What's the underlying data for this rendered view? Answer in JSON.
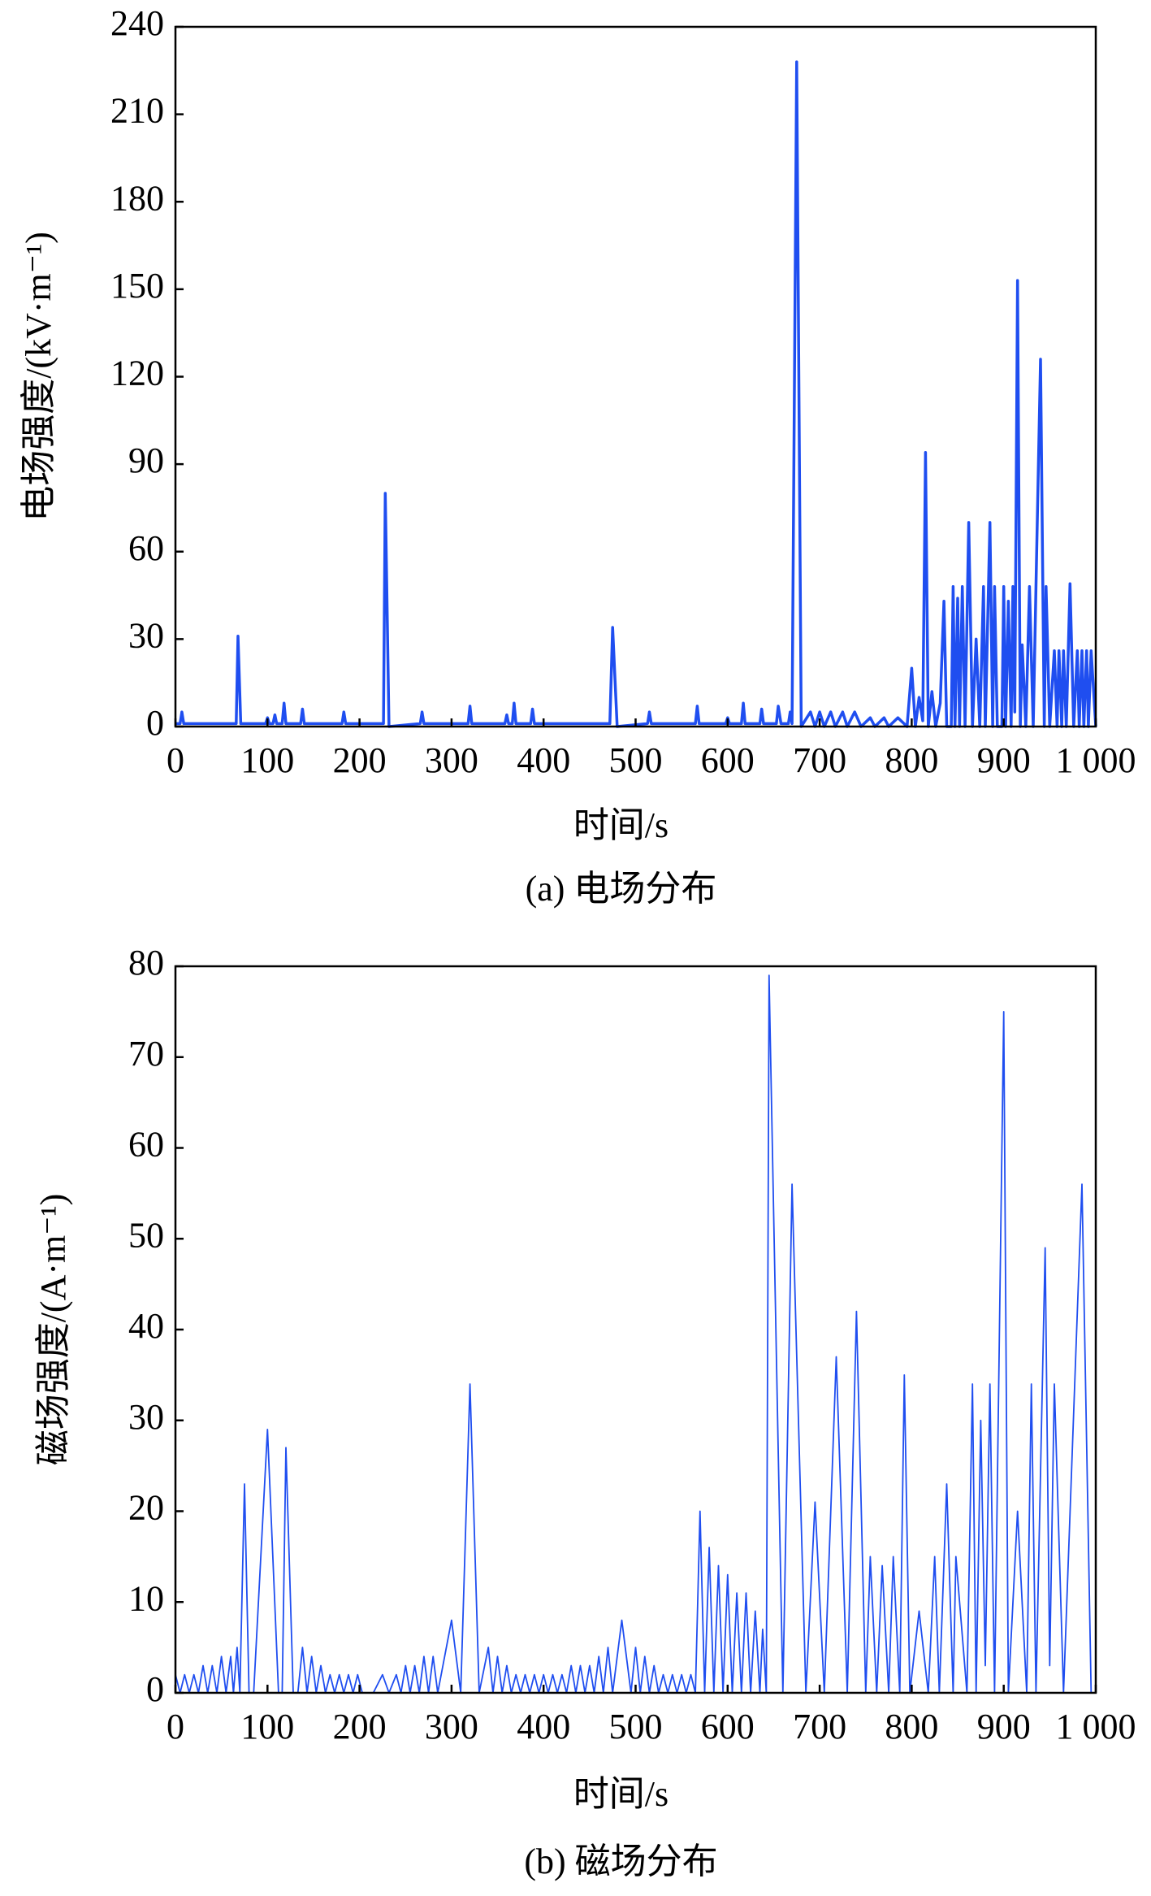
{
  "chart_data": [
    {
      "type": "line",
      "caption": "(a) 电场分布",
      "x_label": "时间/s",
      "y_label": "电场强度/(kV·m⁻¹)",
      "xlim": [
        0,
        1000
      ],
      "xticks": [
        0,
        100,
        200,
        300,
        400,
        500,
        600,
        700,
        800,
        900,
        {
          "value": 1000,
          "label": "1 000"
        }
      ],
      "ylim": [
        0,
        240
      ],
      "yticks": [
        0,
        30,
        60,
        90,
        120,
        150,
        180,
        210,
        240
      ],
      "series": [
        {
          "color": "#1f4ef0",
          "x": [
            0,
            5,
            7,
            9,
            66,
            68,
            71,
            98,
            100,
            102,
            106,
            108,
            110,
            116,
            118,
            120,
            136,
            138,
            140,
            181,
            183,
            185,
            226,
            228,
            232,
            266,
            268,
            270,
            318,
            320,
            322,
            358,
            360,
            362,
            366,
            368,
            370,
            386,
            388,
            390,
            472,
            475,
            480,
            513,
            515,
            517,
            565,
            567,
            569,
            598,
            600,
            602,
            615,
            617,
            619,
            635,
            637,
            639,
            653,
            655,
            658,
            666,
            668,
            670,
            675,
            680,
            690,
            695,
            700,
            705,
            712,
            717,
            725,
            730,
            738,
            745,
            755,
            760,
            770,
            775,
            785,
            795,
            800,
            804,
            808,
            812,
            815,
            818,
            822,
            826,
            831,
            835,
            838,
            843,
            845,
            847,
            850,
            852,
            855,
            858,
            862,
            866,
            870,
            874,
            878,
            880,
            885,
            888,
            890,
            893,
            898,
            900,
            902,
            905,
            908,
            910,
            912,
            915,
            918,
            920,
            924,
            928,
            932,
            935,
            940,
            944,
            946,
            950,
            955,
            958,
            960,
            963,
            965,
            968,
            972,
            976,
            980,
            982,
            985,
            987,
            990,
            992,
            995,
            1000
          ],
          "values": [
            1,
            1,
            5,
            1,
            1,
            31,
            1,
            1,
            3,
            1,
            1,
            4,
            1,
            1,
            8,
            1,
            1,
            6,
            1,
            1,
            5,
            1,
            1,
            80,
            0,
            1,
            5,
            1,
            1,
            7,
            1,
            1,
            4,
            1,
            1,
            8,
            1,
            1,
            6,
            1,
            1,
            34,
            0,
            1,
            5,
            1,
            1,
            7,
            1,
            1,
            3,
            1,
            1,
            8,
            1,
            1,
            6,
            1,
            1,
            7,
            1,
            1,
            5,
            1,
            228,
            0,
            5,
            0,
            5,
            0,
            5,
            0,
            5,
            0,
            5,
            0,
            3,
            0,
            3,
            0,
            3,
            0,
            20,
            0,
            10,
            2,
            94,
            0,
            12,
            0,
            8,
            43,
            0,
            0,
            48,
            0,
            44,
            0,
            48,
            0,
            70,
            0,
            30,
            0,
            48,
            0,
            70,
            0,
            48,
            0,
            0,
            48,
            0,
            43,
            0,
            48,
            5,
            153,
            0,
            28,
            0,
            48,
            0,
            48,
            126,
            0,
            48,
            0,
            26,
            0,
            26,
            0,
            26,
            0,
            49,
            0,
            26,
            0,
            26,
            0,
            26,
            0,
            26,
            0
          ]
        }
      ]
    },
    {
      "type": "line",
      "caption": "(b) 磁场分布",
      "x_label": "时间/s",
      "y_label": "磁场强度/(A·m⁻¹)",
      "xlim": [
        0,
        1000
      ],
      "xticks": [
        0,
        100,
        200,
        300,
        400,
        500,
        600,
        700,
        800,
        900,
        {
          "value": 1000,
          "label": "1 000"
        }
      ],
      "ylim": [
        0,
        80
      ],
      "yticks": [
        0,
        10,
        20,
        30,
        40,
        50,
        60,
        70,
        80
      ],
      "series": [
        {
          "color": "#1f4ef0",
          "x": [
            0,
            5,
            10,
            15,
            20,
            25,
            30,
            35,
            40,
            45,
            50,
            55,
            60,
            63,
            67,
            70,
            75,
            80,
            85,
            100,
            112,
            116,
            120,
            128,
            133,
            138,
            143,
            148,
            153,
            158,
            163,
            168,
            173,
            178,
            183,
            188,
            193,
            198,
            203,
            215,
            225,
            232,
            240,
            245,
            250,
            255,
            260,
            265,
            270,
            275,
            280,
            285,
            300,
            310,
            320,
            330,
            340,
            345,
            350,
            355,
            360,
            365,
            370,
            375,
            380,
            385,
            390,
            395,
            400,
            405,
            410,
            415,
            420,
            425,
            430,
            435,
            440,
            445,
            450,
            455,
            460,
            465,
            470,
            475,
            485,
            495,
            500,
            505,
            510,
            515,
            520,
            525,
            530,
            535,
            540,
            545,
            550,
            555,
            560,
            565,
            570,
            575,
            580,
            585,
            590,
            595,
            600,
            605,
            610,
            615,
            620,
            625,
            630,
            635,
            638,
            642,
            645,
            660,
            670,
            685,
            695,
            705,
            718,
            730,
            740,
            750,
            755,
            762,
            768,
            775,
            780,
            787,
            792,
            798,
            808,
            818,
            825,
            830,
            838,
            845,
            848,
            860,
            866,
            870,
            875,
            880,
            885,
            890,
            900,
            905,
            915,
            925,
            930,
            935,
            945,
            950,
            955,
            965,
            985,
            995,
            1000
          ],
          "values": [
            2,
            0,
            2,
            0,
            2,
            0,
            3,
            0,
            3,
            0,
            4,
            0,
            4,
            0,
            5,
            0,
            23,
            0,
            0,
            29,
            0,
            0,
            27,
            0,
            0,
            5,
            0,
            4,
            0,
            3,
            0,
            2,
            0,
            2,
            0,
            2,
            0,
            2,
            0,
            0,
            2,
            0,
            2,
            0,
            3,
            0,
            3,
            0,
            4,
            0,
            4,
            0,
            8,
            0,
            34,
            0,
            5,
            0,
            4,
            0,
            3,
            0,
            2,
            0,
            2,
            0,
            2,
            0,
            2,
            0,
            2,
            0,
            2,
            0,
            3,
            0,
            3,
            0,
            3,
            0,
            4,
            0,
            5,
            0,
            8,
            0,
            5,
            0,
            4,
            0,
            3,
            0,
            2,
            0,
            2,
            0,
            2,
            0,
            2,
            0,
            20,
            0,
            16,
            0,
            14,
            0,
            13,
            0,
            11,
            0,
            11,
            0,
            9,
            0,
            7,
            0,
            79,
            0,
            56,
            0,
            21,
            0,
            37,
            0,
            42,
            0,
            15,
            0,
            14,
            0,
            15,
            0,
            35,
            0,
            9,
            0,
            15,
            0,
            23,
            0,
            15,
            0,
            34,
            0,
            30,
            3,
            34,
            0,
            75,
            0,
            20,
            0,
            34,
            0,
            49,
            3,
            34,
            0,
            56,
            0,
            0
          ]
        }
      ]
    }
  ]
}
